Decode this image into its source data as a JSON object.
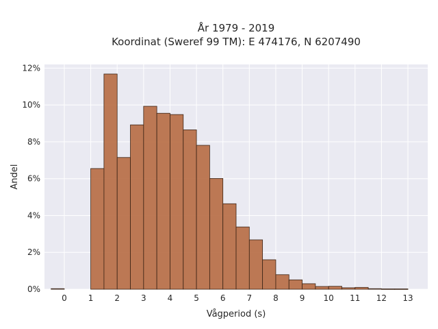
{
  "chart_data": {
    "type": "bar",
    "title": [
      "År 1979 - 2019",
      "Koordinat (Sweref 99 TM): E 474176, N 6207490"
    ],
    "xlabel": "Vågperiod (s)",
    "ylabel": "Andel",
    "xlim": [
      -0.75,
      13.75
    ],
    "ylim": [
      0,
      0.122
    ],
    "bin_width": 0.5,
    "x_ticks": [
      0,
      1,
      2,
      3,
      4,
      5,
      6,
      7,
      8,
      9,
      10,
      11,
      12,
      13
    ],
    "x_tick_labels": [
      "0",
      "1",
      "2",
      "3",
      "4",
      "5",
      "6",
      "7",
      "8",
      "9",
      "10",
      "11",
      "12",
      "13"
    ],
    "y_ticks": [
      0,
      0.02,
      0.04,
      0.06,
      0.08,
      0.1,
      0.12
    ],
    "y_tick_labels": [
      "0%",
      "2%",
      "4%",
      "6%",
      "8%",
      "10%",
      "12%"
    ],
    "grid": true,
    "bin_starts": [
      -0.5,
      0,
      0.5,
      1,
      1.5,
      2,
      2.5,
      3,
      3.5,
      4,
      4.5,
      5,
      5.5,
      6,
      6.5,
      7,
      7.5,
      8,
      8.5,
      9,
      9.5,
      10,
      10.5,
      11,
      11.5,
      12,
      12.5
    ],
    "values": [
      0.0003,
      0,
      0,
      0.0655,
      0.1168,
      0.0715,
      0.0892,
      0.0993,
      0.0955,
      0.0948,
      0.0865,
      0.0781,
      0.0601,
      0.0464,
      0.0338,
      0.0268,
      0.016,
      0.0079,
      0.0051,
      0.003,
      0.0015,
      0.0016,
      0.0008,
      0.001,
      0.0003,
      0.0002,
      0.0002
    ],
    "bar_color": "#b5683d",
    "edge_color": "#3b2416",
    "background_color": "#eaeaf2"
  }
}
